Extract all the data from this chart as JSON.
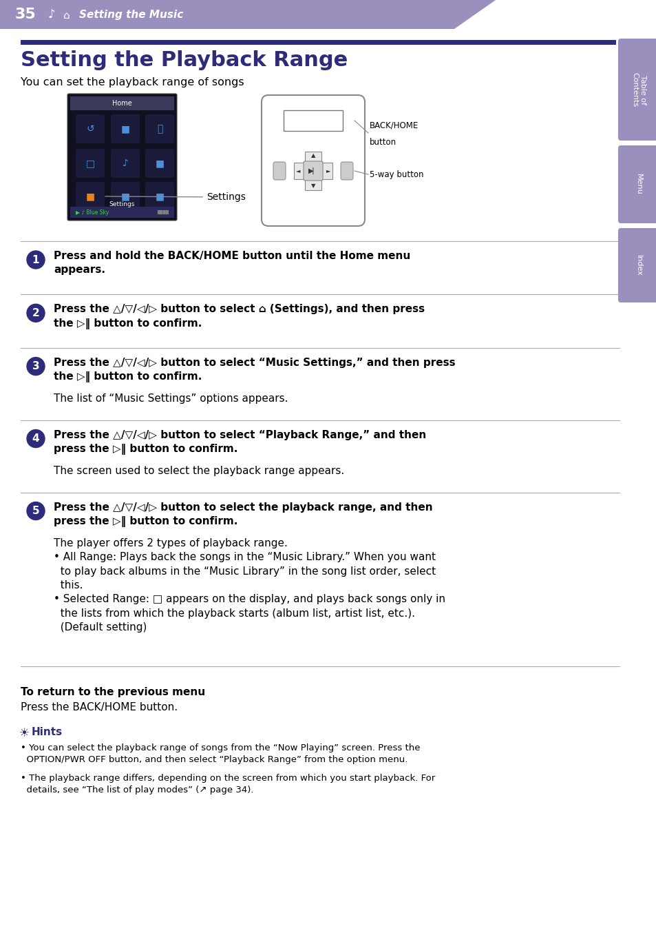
{
  "page_number": "35",
  "header_text": "Setting the Music",
  "header_bg": "#9b8fbe",
  "title_bar_color": "#2d2b7a",
  "title": "Setting the Playback Range",
  "title_color": "#2d2b7a",
  "intro_text": "You can set the playback range of songs",
  "sidebar_color": "#9b8fbe",
  "sidebar_labels": [
    "Table of\nContents",
    "Menu",
    "Index"
  ],
  "circle_color": "#2d2b7a",
  "steps": [
    {
      "num": "1",
      "bold": "Press and hold the BACK/HOME button until the Home menu\nappears.",
      "normal": ""
    },
    {
      "num": "2",
      "bold": "Press the △/▽/◁/▷ button to select ⌂ (Settings), and then press\nthe ▷‖ button to confirm.",
      "normal": ""
    },
    {
      "num": "3",
      "bold": "Press the △/▽/◁/▷ button to select “Music Settings,” and then press\nthe ▷‖ button to confirm.",
      "normal": "The list of “Music Settings” options appears."
    },
    {
      "num": "4",
      "bold": "Press the △/▽/◁/▷ button to select “Playback Range,” and then\npress the ▷‖ button to confirm.",
      "normal": "The screen used to select the playback range appears."
    },
    {
      "num": "5",
      "bold": "Press the △/▽/◁/▷ button to select the playback range, and then\npress the ▷‖ button to confirm.",
      "normal5a": "The player offers 2 types of playback range.",
      "normal5b": "• All Range: Plays back the songs in the “Music Library.” When you want\n  to play back albums in the “Music Library” in the song list order, select\n  this.",
      "normal5c": "• Selected Range: □ appears on the display, and plays back songs only in\n  the lists from which the playback starts (album list, artist list, etc.).\n  (Default setting)"
    }
  ],
  "footer_bold": "To return to the previous menu",
  "footer_text": "Press the BACK/HOME button.",
  "hints_title": "Hints",
  "hint1": "• You can select the playback range of songs from the “Now Playing” screen. Press the\n  OPTION/PWR OFF button, and then select “Playback Range” from the option menu.",
  "hint2": "• The playback range differs, depending on the screen from which you start playback. For\n  details, see “The list of play modes” (↗ page 34).",
  "divider_color": "#aaaaaa",
  "bg_color": "#ffffff",
  "text_color": "#000000"
}
